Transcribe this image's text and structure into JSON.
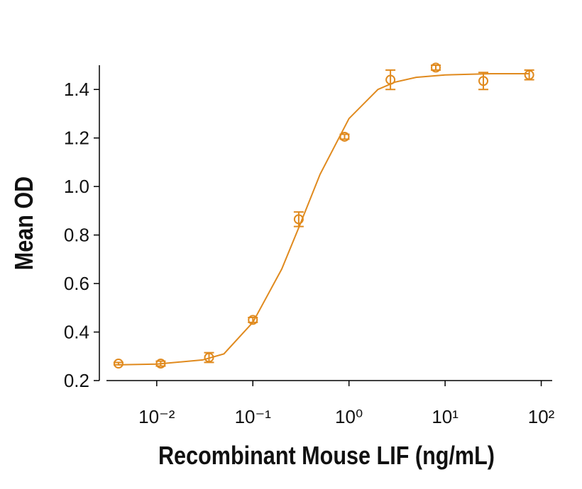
{
  "chart_data": {
    "type": "scatter",
    "x_label": "Recombinant Mouse LIF (ng/mL)",
    "y_label": "Mean OD",
    "xscale": "log",
    "xlim": [
      0.003,
      130
    ],
    "ylim": [
      0.2,
      1.5
    ],
    "xticks": [
      {
        "value": 0.01,
        "label": "10⁻²"
      },
      {
        "value": 0.1,
        "label": "10⁻¹"
      },
      {
        "value": 1,
        "label": "10⁰"
      },
      {
        "value": 10,
        "label": "10¹"
      },
      {
        "value": 100,
        "label": "10²"
      }
    ],
    "yticks": [
      0.2,
      0.4,
      0.6,
      0.8,
      {
        "value": 1,
        "label": "1.0"
      },
      1.2,
      1.4
    ],
    "series": [
      {
        "mode": "markers",
        "color": "#e08a1e",
        "x": [
          0.004,
          0.011,
          0.035,
          0.1,
          0.3,
          0.9,
          2.7,
          8,
          25,
          75
        ],
        "values": [
          0.27,
          0.27,
          0.295,
          0.45,
          0.865,
          1.205,
          1.44,
          1.49,
          1.435,
          1.46
        ],
        "errors": [
          0.005,
          0.01,
          0.02,
          0.01,
          0.03,
          0.01,
          0.04,
          0.01,
          0.035,
          0.02
        ]
      },
      {
        "mode": "line",
        "color": "#e08a1e",
        "x": [
          0.004,
          0.01,
          0.03,
          0.05,
          0.1,
          0.2,
          0.3,
          0.5,
          1,
          2,
          3,
          5,
          10,
          30,
          75
        ],
        "values": [
          0.265,
          0.268,
          0.285,
          0.31,
          0.44,
          0.66,
          0.83,
          1.05,
          1.28,
          1.4,
          1.43,
          1.45,
          1.46,
          1.465,
          1.465
        ]
      }
    ]
  }
}
